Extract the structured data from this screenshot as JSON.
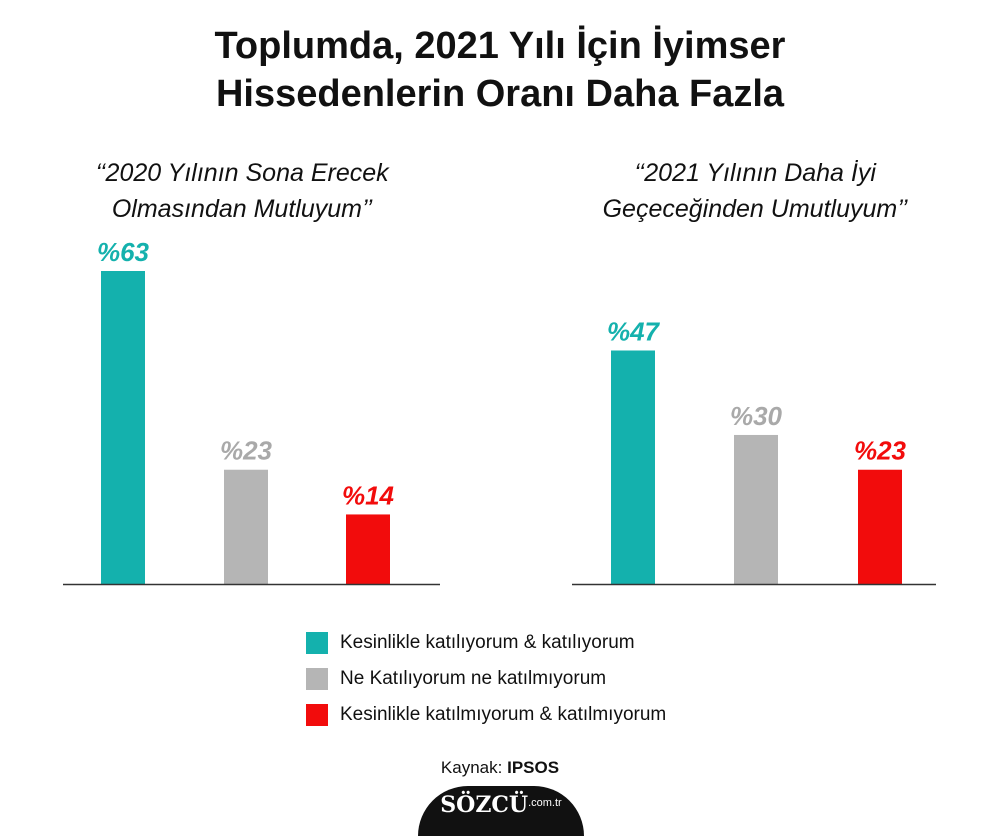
{
  "title": {
    "line1": "Toplumda, 2021 Yılı İçin İyimser",
    "line2": "Hissedenlerin Oranı Daha Fazla"
  },
  "colors": {
    "teal": "#14b1ad",
    "gray": "#b5b5b5",
    "red": "#f20c0c"
  },
  "chart_data": [
    {
      "type": "bar",
      "title_line1": "‘‘2020 Yılının Sona Erecek",
      "title_line2": "Olmasından Mutluyum’’",
      "categories": [
        "Kesinlikle katılıyorum & katılıyorum",
        "Ne Katılıyorum ne katılmıyorum",
        "Kesinlikle katılmıyorum & katılmıyorum"
      ],
      "values": [
        63,
        23,
        14
      ],
      "value_labels": [
        "%63",
        "%23",
        "%14"
      ],
      "colors": [
        "#14b1ad",
        "#b5b5b5",
        "#f20c0c"
      ],
      "ylim": [
        0,
        63
      ]
    },
    {
      "type": "bar",
      "title_line1": "‘‘2021 Yılının Daha İyi",
      "title_line2": "Geçeceğinden Umutluyum’’",
      "categories": [
        "Kesinlikle katılıyorum & katılıyorum",
        "Ne Katılıyorum ne katılmıyorum",
        "Kesinlikle katılmıyorum & katılmıyorum"
      ],
      "values": [
        47,
        30,
        23
      ],
      "value_labels": [
        "%47",
        "%30",
        "%23"
      ],
      "colors": [
        "#14b1ad",
        "#b5b5b5",
        "#f20c0c"
      ],
      "ylim": [
        0,
        63
      ]
    }
  ],
  "legend": [
    {
      "label": "Kesinlikle katılıyorum & katılıyorum",
      "color": "#14b1ad"
    },
    {
      "label": "Ne Katılıyorum ne katılmıyorum",
      "color": "#b5b5b5"
    },
    {
      "label": "Kesinlikle katılmıyorum & katılmıyorum",
      "color": "#f20c0c"
    }
  ],
  "source": {
    "prefix": "Kaynak:",
    "name": "IPSOS"
  },
  "logo": {
    "main": "SÖZCÜ",
    "suffix": ".com.tr"
  }
}
